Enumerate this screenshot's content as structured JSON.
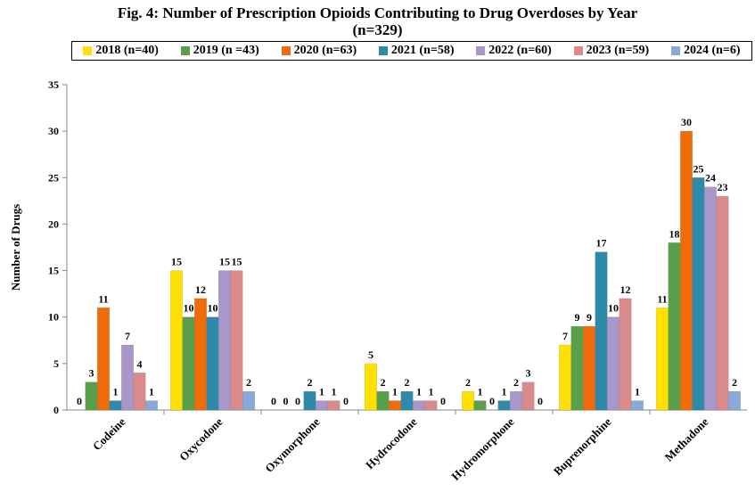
{
  "chart_data": {
    "type": "bar",
    "title": "Fig. 4: Number of Prescription Opioids Contributing to Drug Overdoses by Year",
    "subtitle": "(n=329)",
    "xlabel": "",
    "ylabel": "Number of Drugs",
    "ylim": [
      0,
      35
    ],
    "yticks": [
      0,
      5,
      10,
      15,
      20,
      25,
      30,
      35
    ],
    "grid": false,
    "legend_position": "top",
    "categories": [
      "Codeine",
      "Oxycodone",
      "Oxymorphone",
      "Hydrocodone",
      "Hydromorphone",
      "Buprenorphine",
      "Methadone"
    ],
    "series": [
      {
        "name": "2018 (n=40)",
        "color": "#ffe000",
        "values": [
          0,
          15,
          0,
          5,
          2,
          7,
          11
        ]
      },
      {
        "name": "2019 (n =43)",
        "color": "#5aa04a",
        "values": [
          3,
          10,
          0,
          2,
          1,
          9,
          18
        ]
      },
      {
        "name": "2020 (n=63)",
        "color": "#f06c0a",
        "values": [
          11,
          12,
          0,
          1,
          0,
          9,
          30
        ]
      },
      {
        "name": "2021 (n=58)",
        "color": "#2f8aaa",
        "values": [
          1,
          10,
          2,
          2,
          1,
          17,
          25
        ]
      },
      {
        "name": "2022 (n=60)",
        "color": "#a898c9",
        "values": [
          7,
          15,
          1,
          1,
          2,
          10,
          24
        ]
      },
      {
        "name": "2023 (n=59)",
        "color": "#d98a8a",
        "values": [
          4,
          15,
          1,
          1,
          3,
          12,
          23
        ]
      },
      {
        "name": "2024 (n=6)",
        "color": "#8aa8d8",
        "values": [
          1,
          2,
          0,
          0,
          0,
          1,
          2
        ]
      }
    ]
  }
}
